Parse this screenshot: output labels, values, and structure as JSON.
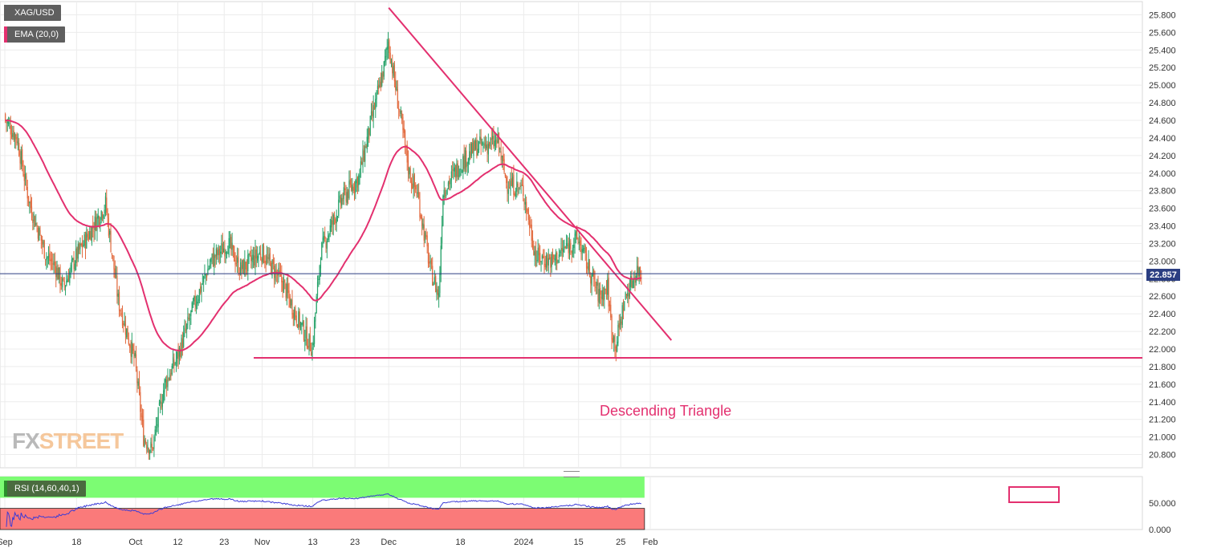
{
  "symbol_label": "XAG/USD",
  "ema_label": "EMA (20,0)",
  "rsi_label": "RSI (14,60,40,1)",
  "current_price": "22.857",
  "annotation": "Descending Triangle",
  "watermark": {
    "fx": "FX",
    "street": "STREET"
  },
  "colors": {
    "up_candle": "#26a269",
    "down_candle": "#e2693d",
    "ema": "#e3306f",
    "trendline": "#e3306f",
    "price_line": "#2b3e82",
    "rsi_line": "#3b3bd6",
    "rsi_upper_zone": "#7cfc73",
    "rsi_lower_zone": "#fa7a7a",
    "grid": "#ececec",
    "background": "#ffffff"
  },
  "chart_data": [
    {
      "type": "candlestick",
      "title": "XAG/USD",
      "y_axis": {
        "ticks": [
          "25.800",
          "25.600",
          "25.400",
          "25.200",
          "25.000",
          "24.800",
          "24.600",
          "24.400",
          "24.200",
          "24.000",
          "23.800",
          "23.600",
          "23.400",
          "23.200",
          "23.000",
          "22.800",
          "22.600",
          "22.400",
          "22.200",
          "22.000",
          "21.800",
          "21.600",
          "21.400",
          "21.200",
          "21.000",
          "20.800"
        ],
        "range": [
          20.65,
          25.95
        ]
      },
      "x_axis": {
        "tick_labels": [
          "Sep",
          "18",
          "Oct",
          "12",
          "23",
          "Nov",
          "13",
          "23",
          "Dec",
          "18",
          "2024",
          "15",
          "25",
          "Feb"
        ]
      },
      "grid": true,
      "series": [
        {
          "name": "XAG/USD",
          "anchor_closes": [
            {
              "date": "2023-09-01",
              "close": 24.62
            },
            {
              "date": "2023-09-04",
              "close": 24.4
            },
            {
              "date": "2023-09-07",
              "close": 23.65
            },
            {
              "date": "2023-09-11",
              "close": 23.05
            },
            {
              "date": "2023-09-13",
              "close": 22.95
            },
            {
              "date": "2023-09-15",
              "close": 22.7
            },
            {
              "date": "2023-09-18",
              "close": 23.05
            },
            {
              "date": "2023-09-21",
              "close": 23.3
            },
            {
              "date": "2023-09-25",
              "close": 23.65
            },
            {
              "date": "2023-09-28",
              "close": 22.55
            },
            {
              "date": "2023-10-02",
              "close": 21.85
            },
            {
              "date": "2023-10-04",
              "close": 21.0
            },
            {
              "date": "2023-10-06",
              "close": 20.85
            },
            {
              "date": "2023-10-09",
              "close": 21.6
            },
            {
              "date": "2023-10-12",
              "close": 21.9
            },
            {
              "date": "2023-10-16",
              "close": 22.5
            },
            {
              "date": "2023-10-20",
              "close": 23.0
            },
            {
              "date": "2023-10-24",
              "close": 23.2
            },
            {
              "date": "2023-10-27",
              "close": 22.9
            },
            {
              "date": "2023-11-01",
              "close": 23.1
            },
            {
              "date": "2023-11-06",
              "close": 22.75
            },
            {
              "date": "2023-11-09",
              "close": 22.4
            },
            {
              "date": "2023-11-13",
              "close": 22.0
            },
            {
              "date": "2023-11-15",
              "close": 23.1
            },
            {
              "date": "2023-11-20",
              "close": 23.7
            },
            {
              "date": "2023-11-24",
              "close": 23.95
            },
            {
              "date": "2023-11-27",
              "close": 24.6
            },
            {
              "date": "2023-11-30",
              "close": 25.2
            },
            {
              "date": "2023-12-01",
              "close": 25.5
            },
            {
              "date": "2023-12-04",
              "close": 24.6
            },
            {
              "date": "2023-12-06",
              "close": 24.0
            },
            {
              "date": "2023-12-08",
              "close": 23.75
            },
            {
              "date": "2023-12-11",
              "close": 22.9
            },
            {
              "date": "2023-12-13",
              "close": 22.6
            },
            {
              "date": "2023-12-14",
              "close": 23.8
            },
            {
              "date": "2023-12-18",
              "close": 24.1
            },
            {
              "date": "2023-12-22",
              "close": 24.3
            },
            {
              "date": "2023-12-27",
              "close": 24.35
            },
            {
              "date": "2023-12-29",
              "close": 23.9
            },
            {
              "date": "2024-01-02",
              "close": 23.8
            },
            {
              "date": "2024-01-05",
              "close": 23.05
            },
            {
              "date": "2024-01-09",
              "close": 23.0
            },
            {
              "date": "2024-01-12",
              "close": 23.15
            },
            {
              "date": "2024-01-15",
              "close": 23.25
            },
            {
              "date": "2024-01-18",
              "close": 22.85
            },
            {
              "date": "2024-01-20",
              "close": 22.6
            },
            {
              "date": "2024-01-22",
              "close": 22.7
            },
            {
              "date": "2024-01-23",
              "close": 22.2
            },
            {
              "date": "2024-01-24",
              "close": 22.05
            },
            {
              "date": "2024-01-26",
              "close": 22.55
            },
            {
              "date": "2024-01-28",
              "close": 22.8
            },
            {
              "date": "2024-01-29",
              "close": 22.9
            },
            {
              "date": "2024-01-30",
              "close": 22.86
            }
          ]
        },
        {
          "name": "EMA (20,0)"
        }
      ],
      "annotations": {
        "support_level": 21.9,
        "descending_trendline": [
          {
            "date": "2023-12-01",
            "value": 25.88
          },
          {
            "date": "2024-02-06",
            "value": 22.1
          }
        ],
        "current_price_line": 22.857
      }
    },
    {
      "type": "line",
      "title": "RSI (14,60,40,1)",
      "y_axis": {
        "ticks": [
          "50.000",
          "0.000"
        ],
        "range": [
          0,
          100
        ]
      },
      "zones": {
        "upper": [
          60,
          100
        ],
        "lower": [
          0,
          40
        ]
      },
      "series": [
        {
          "name": "RSI (14,60,40,1)"
        }
      ]
    }
  ]
}
